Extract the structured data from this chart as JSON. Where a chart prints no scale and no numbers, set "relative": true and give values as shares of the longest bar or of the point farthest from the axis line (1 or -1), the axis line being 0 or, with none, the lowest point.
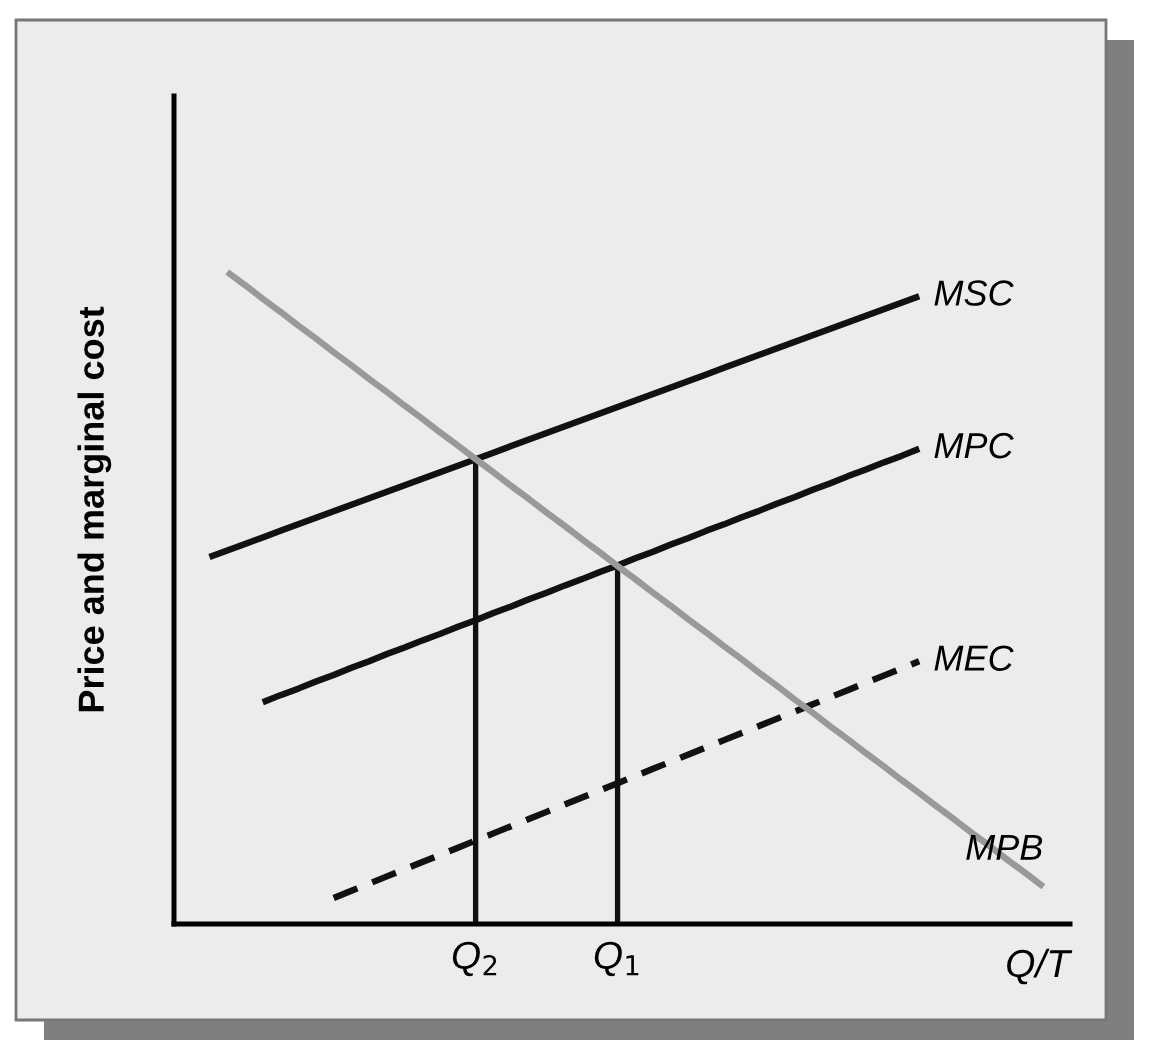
{
  "chart_data": {
    "type": "line",
    "relative": true,
    "ylabel": "Price and marginal cost",
    "xlabel": "Q/T",
    "categories": [
      null,
      null,
      null,
      null,
      null,
      null,
      null,
      null,
      null,
      null,
      null,
      null,
      null,
      null,
      null,
      null,
      null,
      "Q$_{2}$",
      null,
      null,
      null,
      null,
      null,
      null,
      null,
      "Q$_{1}$",
      null,
      null,
      null,
      null,
      null,
      null,
      null,
      null,
      null,
      null,
      null,
      null,
      null,
      null,
      null,
      null,
      null,
      null,
      null,
      null,
      null,
      null,
      null,
      null,
      null
    ],
    "tick_labels": "x",
    "grid": false,
    "series": [
      {
        "name": "MSC",
        "color": "#111111",
        "values": [
          null,
          null,
          0.563,
          0.573,
          0.583,
          0.593,
          0.603,
          0.613,
          0.623,
          0.633,
          0.643,
          0.653,
          0.663,
          0.673,
          0.683,
          0.693,
          0.703,
          0.713,
          0.723,
          0.733,
          0.743,
          0.753,
          0.763,
          0.773,
          0.783,
          0.793,
          0.803,
          0.813,
          0.823,
          0.833,
          0.843,
          0.853,
          0.863,
          0.873,
          0.883,
          0.893,
          0.903,
          0.913,
          0.923,
          0.933,
          0.943,
          0.953,
          0.963,
          null,
          null,
          null,
          null,
          null,
          null,
          null,
          null
        ]
      },
      {
        "name": "MPC",
        "color": "#111111",
        "values": [
          null,
          null,
          null,
          null,
          null,
          0.34,
          0.351,
          0.361,
          0.372,
          0.382,
          0.393,
          0.403,
          0.414,
          0.424,
          0.435,
          0.445,
          0.456,
          0.466,
          0.477,
          0.487,
          0.498,
          0.508,
          0.519,
          0.529,
          0.54,
          0.55,
          0.561,
          0.571,
          0.582,
          0.592,
          0.603,
          0.613,
          0.624,
          0.634,
          0.645,
          0.655,
          0.666,
          0.676,
          0.687,
          0.697,
          0.708,
          0.718,
          0.729,
          null,
          null,
          null,
          null,
          null,
          null,
          null,
          null
        ]
      },
      {
        "name": "MEC",
        "color": "#111111",
        "line_style": "dashed",
        "values": [
          null,
          null,
          null,
          null,
          null,
          null,
          null,
          null,
          null,
          0.04,
          0.051,
          0.062,
          0.073,
          0.084,
          0.095,
          0.106,
          0.117,
          0.128,
          0.139,
          0.15,
          0.161,
          0.172,
          0.183,
          0.194,
          0.205,
          0.216,
          0.227,
          0.238,
          0.249,
          0.26,
          0.271,
          0.282,
          0.293,
          0.304,
          0.315,
          0.326,
          0.337,
          0.348,
          0.359,
          0.37,
          0.381,
          0.392,
          0.403,
          null,
          null,
          null,
          null,
          null,
          null,
          null,
          null
        ]
      },
      {
        "name": "MPB",
        "color": "#999999",
        "values": [
          null,
          null,
          null,
          1,
          0.98,
          0.959,
          0.939,
          0.918,
          0.898,
          0.877,
          0.857,
          0.836,
          0.816,
          0.795,
          0.775,
          0.754,
          0.734,
          0.713,
          0.693,
          0.672,
          0.652,
          0.631,
          0.611,
          0.59,
          0.57,
          0.549,
          0.529,
          0.508,
          0.488,
          0.467,
          0.447,
          0.426,
          0.406,
          0.385,
          0.365,
          0.344,
          0.324,
          0.303,
          0.283,
          0.262,
          0.242,
          0.221,
          0.201,
          0.18,
          0.16,
          0.139,
          0.119,
          0.098,
          0.078,
          0.057,
          null
        ]
      },
      {
        "type": "bar",
        "color": "#111111",
        "values": [
          null,
          null,
          null,
          null,
          null,
          null,
          null,
          null,
          null,
          null,
          null,
          null,
          null,
          null,
          null,
          null,
          null,
          0.713,
          null,
          null,
          null,
          null,
          null,
          null,
          null,
          0.549,
          null,
          null,
          null,
          null,
          null,
          null,
          null,
          null,
          null,
          null,
          null,
          null,
          null,
          null,
          null,
          null,
          null,
          null,
          null,
          null,
          null,
          null,
          null,
          null,
          null
        ]
      }
    ]
  }
}
